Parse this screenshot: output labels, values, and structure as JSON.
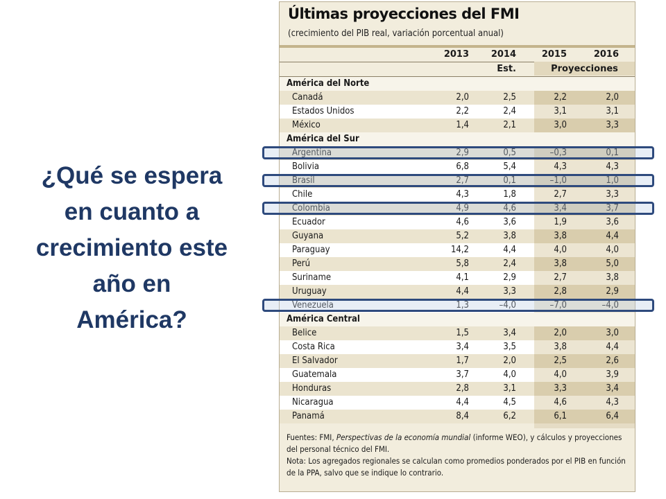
{
  "question": {
    "lines": [
      "¿Qué se espera",
      "en cuanto a",
      "crecimiento este",
      "año en",
      "América?"
    ]
  },
  "table": {
    "title": "Últimas proyecciones del FMI",
    "subtitle": "(crecimiento del PIB real, variación porcentual anual)",
    "years": [
      "2013",
      "2014",
      "2015",
      "2016"
    ],
    "est_label": "Est.",
    "proj_label": "Proyecciones",
    "sections": [
      {
        "name": "América del Norte",
        "rows": [
          {
            "country": "Canadá",
            "values": [
              "2,0",
              "2,5",
              "2,2",
              "2,0"
            ]
          },
          {
            "country": "Estados Unidos",
            "values": [
              "2,2",
              "2,4",
              "3,1",
              "3,1"
            ]
          },
          {
            "country": "México",
            "values": [
              "1,4",
              "2,1",
              "3,0",
              "3,3"
            ]
          }
        ]
      },
      {
        "name": "América del Sur",
        "rows": [
          {
            "country": "Argentina",
            "values": [
              "2,9",
              "0,5",
              "–0,3",
              "0,1"
            ],
            "highlighted": true
          },
          {
            "country": "Bolivia",
            "values": [
              "6,8",
              "5,4",
              "4,3",
              "4,3"
            ]
          },
          {
            "country": "Brasil",
            "values": [
              "2,7",
              "0,1",
              "–1,0",
              "1,0"
            ],
            "highlighted": true
          },
          {
            "country": "Chile",
            "values": [
              "4,3",
              "1,8",
              "2,7",
              "3,3"
            ]
          },
          {
            "country": "Colombia",
            "values": [
              "4,9",
              "4,6",
              "3,4",
              "3,7"
            ],
            "highlighted": true
          },
          {
            "country": "Ecuador",
            "values": [
              "4,6",
              "3,6",
              "1,9",
              "3,6"
            ]
          },
          {
            "country": "Guyana",
            "values": [
              "5,2",
              "3,8",
              "3,8",
              "4,4"
            ]
          },
          {
            "country": "Paraguay",
            "values": [
              "14,2",
              "4,4",
              "4,0",
              "4,0"
            ]
          },
          {
            "country": "Perú",
            "values": [
              "5,8",
              "2,4",
              "3,8",
              "5,0"
            ]
          },
          {
            "country": "Suriname",
            "values": [
              "4,1",
              "2,9",
              "2,7",
              "3,8"
            ]
          },
          {
            "country": "Uruguay",
            "values": [
              "4,4",
              "3,3",
              "2,8",
              "2,9"
            ]
          },
          {
            "country": "Venezuela",
            "values": [
              "1,3",
              "–4,0",
              "–7,0",
              "–4,0"
            ],
            "highlighted": true
          }
        ]
      },
      {
        "name": "América Central",
        "rows": [
          {
            "country": "Belice",
            "values": [
              "1,5",
              "3,4",
              "2,0",
              "3,0"
            ]
          },
          {
            "country": "Costa Rica",
            "values": [
              "3,4",
              "3,5",
              "3,8",
              "4,4"
            ]
          },
          {
            "country": "El Salvador",
            "values": [
              "1,7",
              "2,0",
              "2,5",
              "2,6"
            ]
          },
          {
            "country": "Guatemala",
            "values": [
              "3,7",
              "4,0",
              "4,0",
              "3,9"
            ]
          },
          {
            "country": "Honduras",
            "values": [
              "2,8",
              "3,1",
              "3,3",
              "3,4"
            ]
          },
          {
            "country": "Nicaragua",
            "values": [
              "4,4",
              "4,5",
              "4,6",
              "4,3"
            ]
          },
          {
            "country": "Panamá",
            "values": [
              "8,4",
              "6,2",
              "6,1",
              "6,4"
            ]
          }
        ]
      }
    ],
    "notes": {
      "sources_prefix": "Fuentes: FMI, ",
      "sources_italic": "Perspectivas de la economía mundial",
      "sources_suffix": " (informe WEO), y cálculos y proyecciones del personal técnico del FMI.",
      "note": "Nota: Los agregados regionales se calculan como promedios ponderados por el PIB en función de la PPA, salvo que se indique lo contrario."
    }
  },
  "colors": {
    "question_text": "#1f3864",
    "highlight_border": "#2e4a7d",
    "panel_bg": "#f2eddd"
  }
}
